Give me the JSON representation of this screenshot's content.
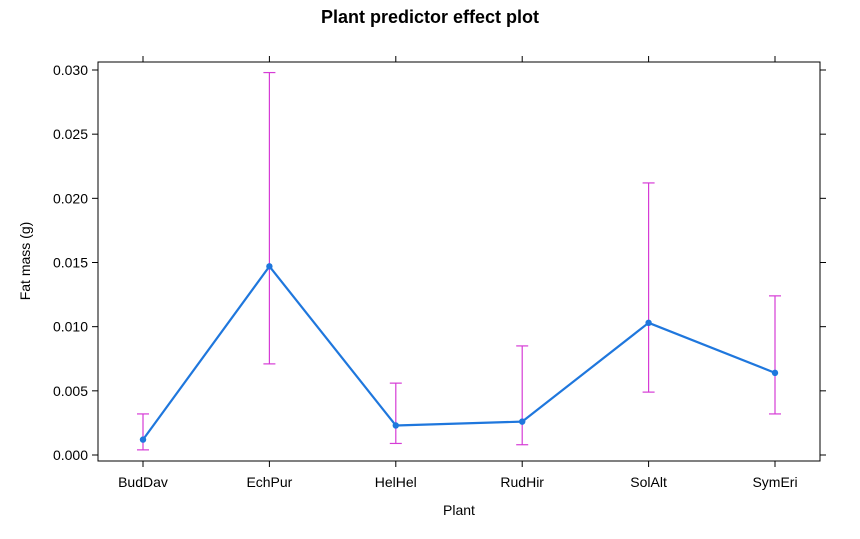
{
  "chart_data": {
    "type": "line",
    "title": "Plant predictor effect plot",
    "xlabel": "Plant",
    "ylabel": "Fat mass (g)",
    "categories": [
      "BudDav",
      "EchPur",
      "HelHel",
      "RudHir",
      "SolAlt",
      "SymEri"
    ],
    "series": [
      {
        "values": [
          0.0012,
          0.0147,
          0.0023,
          0.0026,
          0.0103,
          0.0064
        ],
        "lower": [
          0.0004,
          0.0071,
          0.0009,
          0.0008,
          0.0049,
          0.0032
        ],
        "upper": [
          0.0032,
          0.0298,
          0.0056,
          0.0085,
          0.0212,
          0.0124
        ]
      }
    ],
    "yticks": [
      "0.000",
      "0.005",
      "0.010",
      "0.015",
      "0.020",
      "0.025",
      "0.030"
    ],
    "ylim": [
      -0.0001,
      0.0301
    ],
    "grid": false,
    "colors": {
      "line": "#1f77dd",
      "errorbar": "#d63cd6",
      "frame": "#000000"
    }
  }
}
